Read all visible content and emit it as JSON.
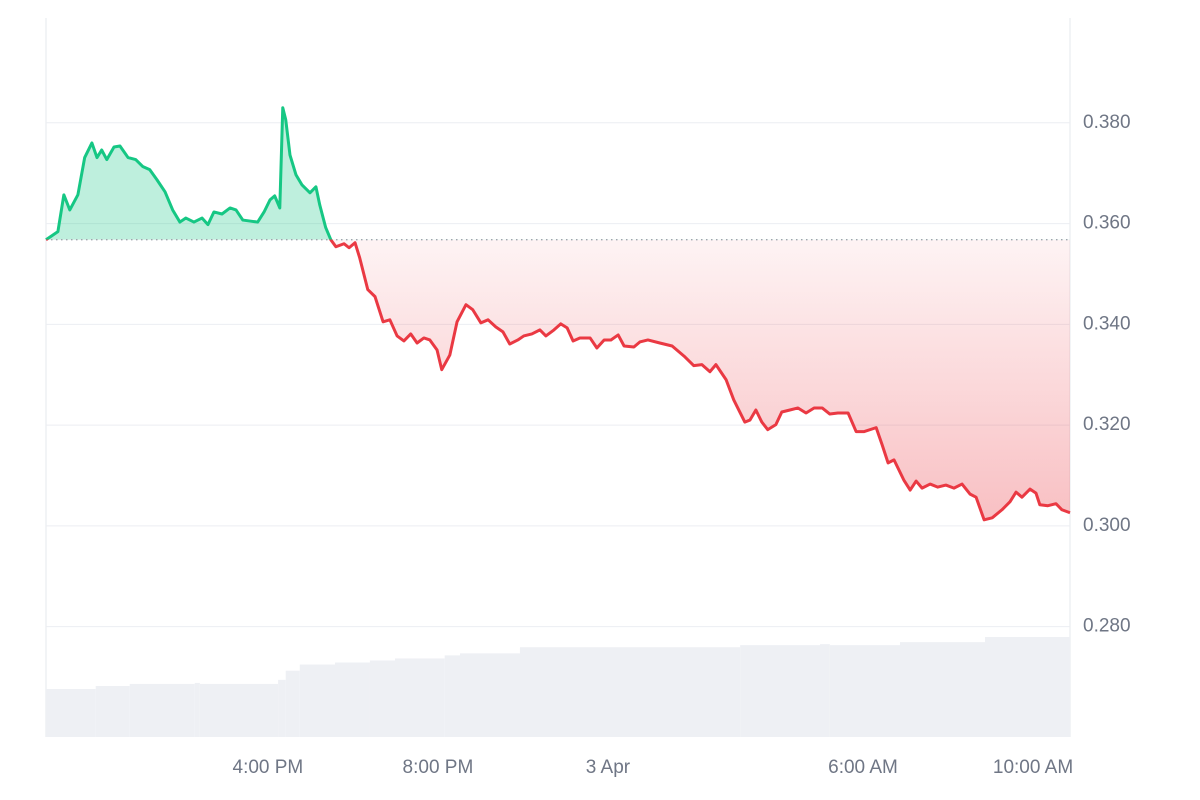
{
  "chart_data": {
    "type": "line",
    "up_color": "#16c784",
    "down_color": "#ea3943",
    "baseline": 0.3568,
    "xlim": [
      -13.22,
      10.87
    ],
    "ylim": [
      0.2581,
      0.4008
    ],
    "xticks": [
      {
        "value": -8,
        "label": "4:00 PM"
      },
      {
        "value": -4,
        "label": "8:00 PM"
      },
      {
        "value": 0,
        "label": "3 Apr"
      },
      {
        "value": 6,
        "label": "6:00 AM"
      },
      {
        "value": 10,
        "label": "10:00 AM"
      }
    ],
    "yticks": [
      {
        "value": 0.28,
        "label": "0.280"
      },
      {
        "value": 0.3,
        "label": "0.300"
      },
      {
        "value": 0.32,
        "label": "0.320"
      },
      {
        "value": 0.34,
        "label": "0.340"
      },
      {
        "value": 0.36,
        "label": "0.360"
      },
      {
        "value": 0.38,
        "label": "0.380"
      }
    ],
    "grid": true,
    "x": [
      -13.22,
      -12.94,
      -12.8,
      -12.66,
      -12.47,
      -12.31,
      -12.14,
      -12.02,
      -11.91,
      -11.79,
      -11.62,
      -11.48,
      -11.29,
      -11.11,
      -10.94,
      -10.78,
      -10.61,
      -10.42,
      -10.24,
      -10.07,
      -9.93,
      -9.74,
      -9.55,
      -9.41,
      -9.27,
      -9.08,
      -8.89,
      -8.75,
      -8.59,
      -8.42,
      -8.24,
      -8.09,
      -7.95,
      -7.84,
      -7.72,
      -7.65,
      -7.58,
      -7.48,
      -7.34,
      -7.2,
      -7.01,
      -6.87,
      -6.78,
      -6.64,
      -6.52,
      -6.4,
      -6.21,
      -6.09,
      -5.95,
      -5.84,
      -5.65,
      -5.48,
      -5.29,
      -5.13,
      -4.96,
      -4.8,
      -4.64,
      -4.49,
      -4.33,
      -4.19,
      -4.02,
      -3.91,
      -3.72,
      -3.55,
      -3.34,
      -3.18,
      -2.99,
      -2.82,
      -2.64,
      -2.47,
      -2.31,
      -2.12,
      -1.98,
      -1.79,
      -1.6,
      -1.46,
      -1.27,
      -1.11,
      -0.96,
      -0.82,
      -0.66,
      -0.42,
      -0.26,
      -0.09,
      0.07,
      0.24,
      0.38,
      0.61,
      0.75,
      0.94,
      1.22,
      1.51,
      1.79,
      2.02,
      2.21,
      2.4,
      2.54,
      2.78,
      2.96,
      3.22,
      3.34,
      3.48,
      3.62,
      3.76,
      3.95,
      4.09,
      4.28,
      4.47,
      4.66,
      4.85,
      5.04,
      5.22,
      5.41,
      5.65,
      5.84,
      6.02,
      6.31,
      6.45,
      6.59,
      6.73,
      6.96,
      7.11,
      7.25,
      7.39,
      7.58,
      7.76,
      7.95,
      8.14,
      8.33,
      8.52,
      8.66,
      8.85,
      9.04,
      9.27,
      9.46,
      9.6,
      9.74,
      9.93,
      10.07,
      10.16,
      10.35,
      10.54,
      10.68,
      10.87
    ],
    "values": [
      0.3568,
      0.3584,
      0.3657,
      0.3627,
      0.3657,
      0.3731,
      0.376,
      0.3731,
      0.3746,
      0.3727,
      0.3752,
      0.3754,
      0.3731,
      0.3727,
      0.3713,
      0.3707,
      0.3687,
      0.3663,
      0.3627,
      0.3603,
      0.3611,
      0.3603,
      0.3611,
      0.3598,
      0.3623,
      0.3619,
      0.3631,
      0.3627,
      0.3607,
      0.3605,
      0.3603,
      0.3623,
      0.3647,
      0.3655,
      0.3631,
      0.383,
      0.3806,
      0.3736,
      0.3697,
      0.3677,
      0.3661,
      0.3673,
      0.3637,
      0.3592,
      0.3568,
      0.3554,
      0.356,
      0.3552,
      0.3562,
      0.3532,
      0.3469,
      0.3455,
      0.3405,
      0.3409,
      0.3377,
      0.3367,
      0.3381,
      0.3363,
      0.3373,
      0.3369,
      0.3349,
      0.331,
      0.3339,
      0.3405,
      0.3439,
      0.3429,
      0.3403,
      0.3409,
      0.3395,
      0.3385,
      0.3361,
      0.3369,
      0.3377,
      0.3381,
      0.3389,
      0.3377,
      0.3389,
      0.3401,
      0.3393,
      0.3367,
      0.3373,
      0.3373,
      0.3353,
      0.3369,
      0.3369,
      0.3379,
      0.3357,
      0.3355,
      0.3365,
      0.3369,
      0.3363,
      0.3357,
      0.3337,
      0.3318,
      0.332,
      0.3306,
      0.332,
      0.329,
      0.325,
      0.3206,
      0.321,
      0.323,
      0.3206,
      0.3191,
      0.3201,
      0.3226,
      0.323,
      0.3234,
      0.3224,
      0.3234,
      0.3234,
      0.3222,
      0.3224,
      0.3224,
      0.3187,
      0.3187,
      0.3195,
      0.3161,
      0.3125,
      0.3131,
      0.3091,
      0.3071,
      0.3089,
      0.3075,
      0.3083,
      0.3077,
      0.3081,
      0.3075,
      0.3083,
      0.3063,
      0.3057,
      0.3012,
      0.3016,
      0.3032,
      0.3048,
      0.3067,
      0.3057,
      0.3073,
      0.3065,
      0.3042,
      0.304,
      0.3044,
      0.3032,
      0.3026
    ],
    "volume": {
      "color": "#eef0f4",
      "x": [
        -13.22,
        -12.05,
        -11.25,
        -9.72,
        -9.6,
        -7.76,
        -7.58,
        -7.25,
        -6.42,
        -5.6,
        -5.01,
        -3.84,
        -3.48,
        -2.07,
        3.11,
        4.99,
        5.22,
        6.87,
        8.87
      ],
      "values": [
        47,
        50,
        52,
        53,
        52,
        56,
        65,
        71,
        73,
        75,
        77,
        80,
        82,
        88,
        90,
        91,
        90,
        93,
        98
      ]
    }
  }
}
